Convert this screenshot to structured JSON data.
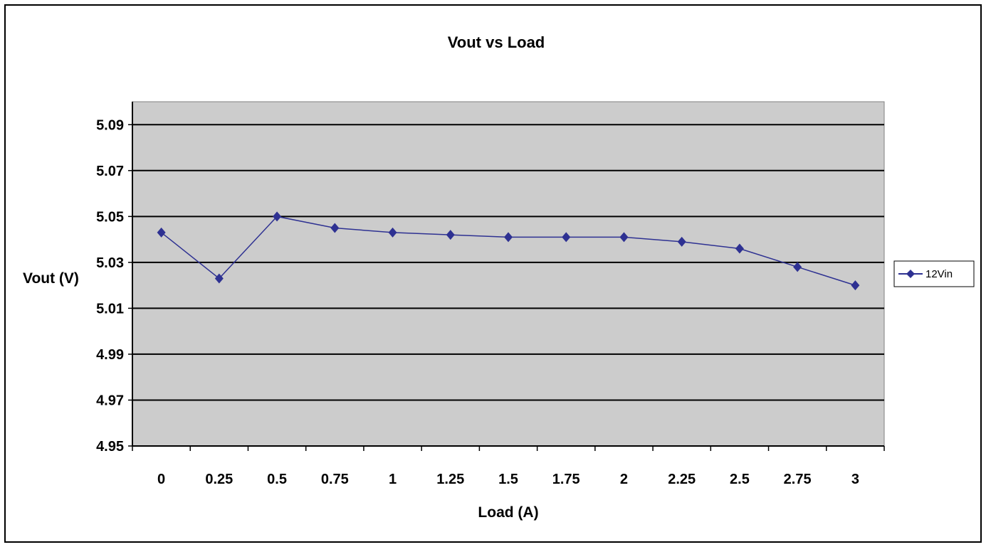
{
  "chart_data": {
    "type": "line",
    "title": "Vout vs Load",
    "xlabel": "Load (A)",
    "ylabel": "Vout (V)",
    "categories": [
      "0",
      "0.25",
      "0.5",
      "0.75",
      "1",
      "1.25",
      "1.5",
      "1.75",
      "2",
      "2.25",
      "2.5",
      "2.75",
      "3"
    ],
    "y_ticks": [
      "4.95",
      "4.97",
      "4.99",
      "5.01",
      "5.03",
      "5.05",
      "5.07",
      "5.09"
    ],
    "ylim": [
      4.95,
      5.1
    ],
    "grid": true,
    "legend_position": "right",
    "series": [
      {
        "name": "12Vin",
        "values": [
          5.043,
          5.023,
          5.05,
          5.045,
          5.043,
          5.042,
          5.041,
          5.041,
          5.041,
          5.039,
          5.036,
          5.028,
          5.02
        ],
        "color": "#2E3192",
        "marker": "diamond"
      }
    ],
    "plot_background": "#CCCCCC"
  }
}
